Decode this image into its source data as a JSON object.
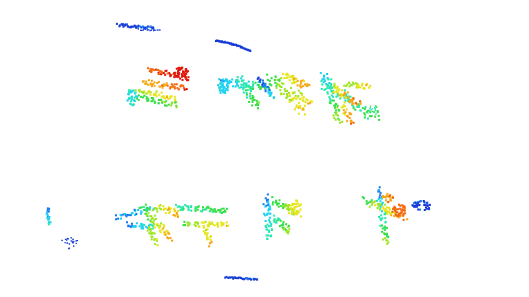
{
  "scene": {
    "background": "#ffffff",
    "description_visible_text": "",
    "colormap": [
      "#1a3fd6",
      "#1f7ff0",
      "#22d3f2",
      "#2ee8b0",
      "#3be04a",
      "#9fe627",
      "#e6e61f",
      "#f7a81c",
      "#f36a13",
      "#e11a0f"
    ],
    "clusters": [
      {
        "id": "streak-top-left"
      },
      {
        "id": "streak-top-center"
      },
      {
        "id": "plant-upper-left"
      },
      {
        "id": "plant-upper-center"
      },
      {
        "id": "plant-upper-right"
      },
      {
        "id": "fragment-far-left"
      },
      {
        "id": "plant-lower-left"
      },
      {
        "id": "plant-lower-center"
      },
      {
        "id": "plant-lower-right"
      },
      {
        "id": "streak-bottom-center"
      }
    ]
  }
}
